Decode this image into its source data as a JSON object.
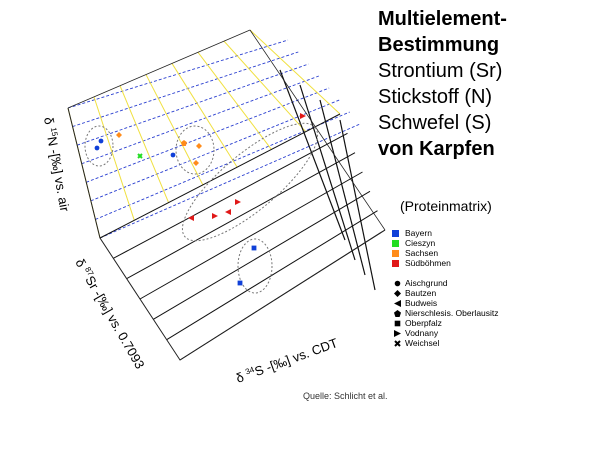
{
  "slide": {
    "title_lines": [
      {
        "text": "Multielement-",
        "bold": true
      },
      {
        "text": "Bestimmung",
        "bold": true
      },
      {
        "text": "Strontium (Sr)",
        "bold": false
      },
      {
        "text": "Stickstoff (N)",
        "bold": false
      },
      {
        "text": "Schwefel (S)",
        "bold": false
      },
      {
        "text": "von Karpfen",
        "bold": true
      }
    ],
    "subtitle": "(Proteinmatrix)",
    "source": "Quelle: Schlicht et al."
  },
  "legend": {
    "regions": [
      {
        "label": "Bayern",
        "color": "#1040d8"
      },
      {
        "label": "Cieszyn",
        "color": "#22dd22"
      },
      {
        "label": "Sachsen",
        "color": "#ff8c1a"
      },
      {
        "label": "Südböhmen",
        "color": "#e01818"
      }
    ],
    "sites": [
      {
        "label": "Aischgrund",
        "symbol": "circle-icon"
      },
      {
        "label": "Bautzen",
        "symbol": "diamond-icon"
      },
      {
        "label": "Budweis",
        "symbol": "triangle-left-icon"
      },
      {
        "label": "Nierschlesis. Oberlausitz",
        "symbol": "pentagon-icon"
      },
      {
        "label": "Oberpfalz",
        "symbol": "square-icon"
      },
      {
        "label": "Vodnany",
        "symbol": "triangle-right-icon"
      },
      {
        "label": "Weichsel",
        "symbol": "cross-icon"
      }
    ]
  },
  "chart_data": {
    "type": "scatter",
    "projection": "3d",
    "axes": {
      "n": "δ 15N -[‰] vs. air",
      "sr": "δ 87Sr -[‰] vs. 0.7093",
      "s": "δ 34S -[‰] vs. CDT"
    },
    "series": [
      {
        "name": "Bayern",
        "color": "#1040d8",
        "points": [
          {
            "site": "Aischgrund",
            "symbol": "circle"
          },
          {
            "site": "Aischgrund",
            "symbol": "circle"
          },
          {
            "site": "Aischgrund",
            "symbol": "circle"
          },
          {
            "site": "Oberpfalz",
            "symbol": "square"
          },
          {
            "site": "Oberpfalz",
            "symbol": "square"
          }
        ]
      },
      {
        "name": "Cieszyn",
        "color": "#22dd22",
        "points": [
          {
            "site": "Weichsel",
            "symbol": "cross"
          }
        ]
      },
      {
        "name": "Sachsen",
        "color": "#ff8c1a",
        "points": [
          {
            "site": "Bautzen",
            "symbol": "diamond"
          },
          {
            "site": "Bautzen",
            "symbol": "diamond"
          },
          {
            "site": "Bautzen",
            "symbol": "diamond"
          },
          {
            "site": "Nierschlesis. Oberlausitz",
            "symbol": "pentagon"
          }
        ]
      },
      {
        "name": "Südböhmen",
        "color": "#e01818",
        "points": [
          {
            "site": "Budweis",
            "symbol": "triangle-left"
          },
          {
            "site": "Budweis",
            "symbol": "triangle-left"
          },
          {
            "site": "Vodnany",
            "symbol": "triangle-right"
          },
          {
            "site": "Vodnany",
            "symbol": "triangle-right"
          },
          {
            "site": "Vodnany",
            "symbol": "triangle-right"
          }
        ]
      }
    ],
    "grid": true
  }
}
